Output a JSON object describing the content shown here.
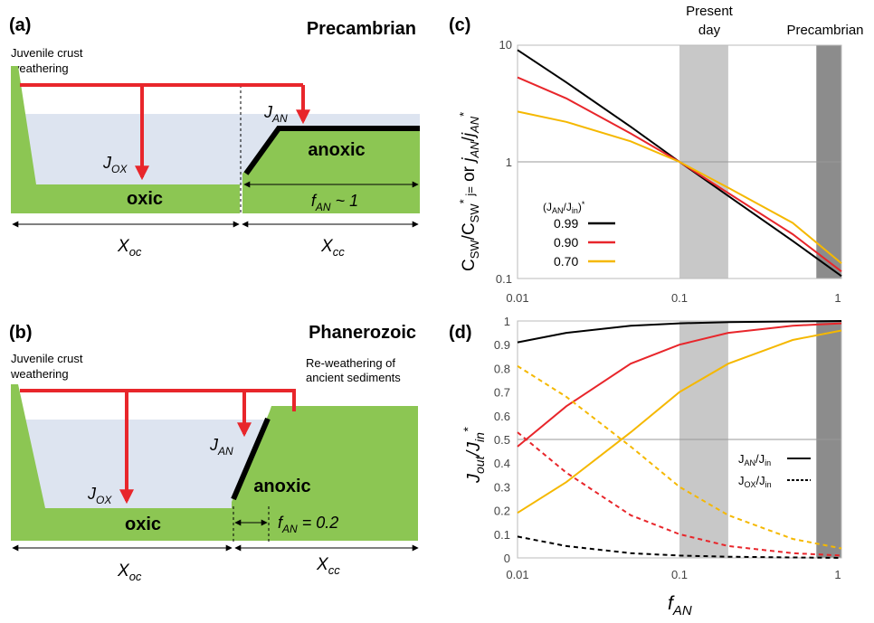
{
  "panel_a": {
    "letter": "(a)",
    "era": "Precambrian",
    "weathering": [
      "Juvenile crust",
      "weathering"
    ],
    "j_ox": "J",
    "j_ox_sub": "OX",
    "j_an": "J",
    "j_an_sub": "AN",
    "oxic": "oxic",
    "anoxic": "anoxic",
    "f_an_main": "f",
    "f_an_sub": "AN",
    "f_an_value": " ~ 1",
    "x_oc": "X",
    "x_oc_sub": "oc",
    "x_cc": "X",
    "x_cc_sub": "cc"
  },
  "panel_b": {
    "letter": "(b)",
    "era": "Phanerozoic",
    "weathering": [
      "Juvenile crust",
      "weathering"
    ],
    "reweathering": [
      "Re-weathering of",
      "ancient sediments"
    ],
    "j_ox": "J",
    "j_ox_sub": "OX",
    "j_an": "J",
    "j_an_sub": "AN",
    "oxic": "oxic",
    "anoxic": "anoxic",
    "f_an_main": "f",
    "f_an_sub": "AN",
    "f_an_value": " = 0.2",
    "x_oc": "X",
    "x_oc_sub": "oc",
    "x_cc": "X",
    "x_cc_sub": "cc"
  },
  "panel_c": {
    "letter": "(c)",
    "present_day": [
      "Present",
      "day"
    ],
    "precambrian": "Precambrian",
    "ylabel": "C_SW/C*_SW j= or j_AN/j*_AN",
    "yticks": [
      "10",
      "1",
      "0.1"
    ],
    "xticks": [
      "0.01",
      "0.1",
      "1"
    ],
    "legend_title": "(J_AN/J_in)*",
    "legend": [
      {
        "label": "0.99",
        "color": "#000000"
      },
      {
        "label": "0.90",
        "color": "#e8262b"
      },
      {
        "label": "0.70",
        "color": "#f5b800"
      }
    ]
  },
  "panel_d": {
    "letter": "(d)",
    "ylabel": "J_out/J*_in",
    "yticks": [
      "1",
      "0.9",
      "0.8",
      "0.7",
      "0.6",
      "0.5",
      "0.4",
      "0.3",
      "0.2",
      "0.1",
      "0"
    ],
    "xticks": [
      "0.01",
      "0.1",
      "1"
    ],
    "xlabel_main": "f",
    "xlabel_sub": "AN",
    "legend_an": "J_AN/J_in",
    "legend_ox": "J_OX/J_in"
  },
  "chart_data": [
    {
      "type": "line",
      "panel": "c",
      "xscale": "log",
      "yscale": "log",
      "xlim": [
        0.01,
        1
      ],
      "ylim": [
        0.1,
        10
      ],
      "shaded_regions": [
        {
          "label": "Present day",
          "x": [
            0.1,
            0.2
          ],
          "color": "#c8c8c8"
        },
        {
          "label": "Precambrian",
          "x": [
            0.7,
            1.0
          ],
          "color": "#8c8c8c"
        }
      ],
      "series": [
        {
          "name": "0.99",
          "color": "#000000",
          "x": [
            0.01,
            0.02,
            0.05,
            0.1,
            0.2,
            0.5,
            1
          ],
          "y": [
            9.1,
            4.8,
            2.0,
            1.0,
            0.51,
            0.21,
            0.105
          ]
        },
        {
          "name": "0.90",
          "color": "#e8262b",
          "x": [
            0.01,
            0.02,
            0.05,
            0.1,
            0.2,
            0.5,
            1
          ],
          "y": [
            5.3,
            3.5,
            1.75,
            1.0,
            0.54,
            0.24,
            0.115
          ]
        },
        {
          "name": "0.70",
          "color": "#f5b800",
          "x": [
            0.01,
            0.02,
            0.05,
            0.1,
            0.2,
            0.5,
            1
          ],
          "y": [
            2.7,
            2.2,
            1.5,
            1.0,
            0.6,
            0.3,
            0.135
          ]
        }
      ]
    },
    {
      "type": "line",
      "panel": "d",
      "xscale": "log",
      "xlim": [
        0.01,
        1
      ],
      "ylim": [
        0,
        1
      ],
      "shaded_regions": [
        {
          "label": "Present day",
          "x": [
            0.1,
            0.2
          ],
          "color": "#c8c8c8"
        },
        {
          "label": "Precambrian",
          "x": [
            0.7,
            1.0
          ],
          "color": "#8c8c8c"
        }
      ],
      "series": [
        {
          "name": "J_AN/J_in 0.99",
          "color": "#000000",
          "dash": false,
          "x": [
            0.01,
            0.02,
            0.05,
            0.1,
            0.2,
            0.5,
            1
          ],
          "y": [
            0.91,
            0.95,
            0.98,
            0.99,
            0.995,
            0.998,
            1.0
          ]
        },
        {
          "name": "J_AN/J_in 0.90",
          "color": "#e8262b",
          "dash": false,
          "x": [
            0.01,
            0.02,
            0.05,
            0.1,
            0.2,
            0.5,
            1
          ],
          "y": [
            0.47,
            0.64,
            0.82,
            0.9,
            0.95,
            0.98,
            0.99
          ]
        },
        {
          "name": "J_AN/J_in 0.70",
          "color": "#f5b800",
          "dash": false,
          "x": [
            0.01,
            0.02,
            0.05,
            0.1,
            0.2,
            0.5,
            1
          ],
          "y": [
            0.19,
            0.32,
            0.53,
            0.7,
            0.82,
            0.92,
            0.96
          ]
        },
        {
          "name": "J_OX/J_in 0.99",
          "color": "#000000",
          "dash": true,
          "x": [
            0.01,
            0.02,
            0.05,
            0.1,
            0.2,
            0.5,
            1
          ],
          "y": [
            0.09,
            0.05,
            0.02,
            0.01,
            0.005,
            0.002,
            0.0
          ]
        },
        {
          "name": "J_OX/J_in 0.90",
          "color": "#e8262b",
          "dash": true,
          "x": [
            0.01,
            0.02,
            0.05,
            0.1,
            0.2,
            0.5,
            1
          ],
          "y": [
            0.53,
            0.36,
            0.18,
            0.1,
            0.05,
            0.02,
            0.01
          ]
        },
        {
          "name": "J_OX/J_in 0.70",
          "color": "#f5b800",
          "dash": true,
          "x": [
            0.01,
            0.02,
            0.05,
            0.1,
            0.2,
            0.5,
            1
          ],
          "y": [
            0.81,
            0.68,
            0.47,
            0.3,
            0.18,
            0.08,
            0.04
          ]
        }
      ]
    }
  ]
}
